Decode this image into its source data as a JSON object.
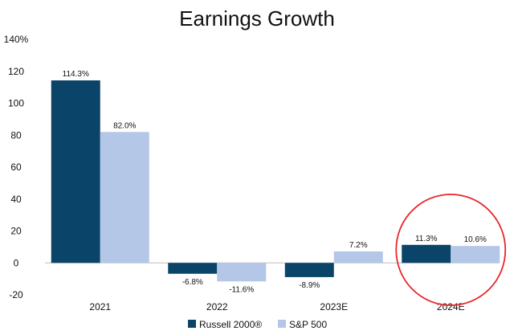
{
  "chart_data": {
    "type": "bar",
    "title": "Earnings Growth",
    "categories": [
      "2021",
      "2022",
      "2023E",
      "2024E"
    ],
    "series": [
      {
        "name": "Russell 2000®",
        "color": "#0a4468",
        "values": [
          114.3,
          -6.8,
          -8.9,
          11.3
        ],
        "labels": [
          "114.3%",
          "-6.8%",
          "-8.9%",
          "11.3%"
        ]
      },
      {
        "name": "S&P 500",
        "color": "#b4c7e7",
        "values": [
          82.0,
          -11.6,
          7.2,
          10.6
        ],
        "labels": [
          "82.0%",
          "-11.6%",
          "7.2%",
          "10.6%"
        ]
      }
    ],
    "ylim": [
      -20,
      140
    ],
    "yticks": [
      -20,
      0,
      20,
      40,
      60,
      80,
      100,
      120,
      140
    ],
    "ytick_labels": [
      "-20",
      "0",
      "20",
      "40",
      "60",
      "80",
      "100",
      "120",
      "140%"
    ],
    "grid": false,
    "legend_position": "bottom",
    "highlight": {
      "category": "2024E",
      "shape": "circle",
      "color": "#e8262a"
    }
  }
}
